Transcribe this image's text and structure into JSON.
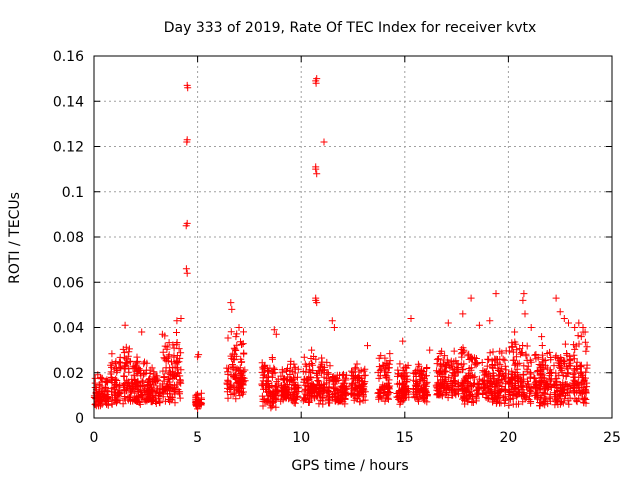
{
  "chart_data": {
    "type": "scatter",
    "title": "Day 333 of 2019, Rate Of TEC Index for receiver kvtx",
    "xlabel": "GPS time / hours",
    "ylabel": "ROTI / TECUs",
    "xlim": [
      0,
      25
    ],
    "ylim": [
      0,
      0.16
    ],
    "xticks": [
      0,
      5,
      10,
      15,
      20,
      25
    ],
    "xtick_labels": [
      "0",
      "5",
      "10",
      "15",
      "20",
      "25"
    ],
    "yticks": [
      0,
      0.02,
      0.04,
      0.06,
      0.08,
      0.1,
      0.12,
      0.14,
      0.16
    ],
    "ytick_labels": [
      "0",
      "0.02",
      "0.04",
      "0.06",
      "0.08",
      "0.1",
      "0.12",
      "0.14",
      "0.16"
    ],
    "grid": true,
    "marker": "+",
    "series_color": "#ff0000",
    "series": [
      {
        "name": "ROTI",
        "clusters": [
          {
            "x": [
              0.0,
              0.7
            ],
            "y": [
              0.005,
              0.02
            ]
          },
          {
            "x": [
              0.8,
              1.3
            ],
            "y": [
              0.005,
              0.03
            ]
          },
          {
            "x": [
              1.4,
              2.0
            ],
            "y": [
              0.005,
              0.035
            ]
          },
          {
            "x": [
              2.0,
              2.5
            ],
            "y": [
              0.005,
              0.028
            ]
          },
          {
            "x": [
              2.5,
              3.2
            ],
            "y": [
              0.006,
              0.025
            ]
          },
          {
            "x": [
              3.3,
              4.2
            ],
            "y": [
              0.006,
              0.04
            ]
          },
          {
            "x": [
              4.9,
              5.2
            ],
            "y": [
              0.005,
              0.012
            ]
          },
          {
            "x": [
              6.4,
              7.3
            ],
            "y": [
              0.008,
              0.04
            ]
          },
          {
            "x": [
              8.1,
              8.9
            ],
            "y": [
              0.004,
              0.03
            ]
          },
          {
            "x": [
              9.0,
              9.9
            ],
            "y": [
              0.006,
              0.025
            ]
          },
          {
            "x": [
              10.1,
              11.4
            ],
            "y": [
              0.006,
              0.028
            ]
          },
          {
            "x": [
              11.5,
              12.2
            ],
            "y": [
              0.006,
              0.022
            ]
          },
          {
            "x": [
              12.4,
              13.1
            ],
            "y": [
              0.007,
              0.026
            ]
          },
          {
            "x": [
              13.7,
              14.3
            ],
            "y": [
              0.007,
              0.03
            ]
          },
          {
            "x": [
              14.6,
              15.2
            ],
            "y": [
              0.006,
              0.026
            ]
          },
          {
            "x": [
              15.4,
              16.1
            ],
            "y": [
              0.007,
              0.025
            ]
          },
          {
            "x": [
              16.5,
              17.6
            ],
            "y": [
              0.008,
              0.03
            ]
          },
          {
            "x": [
              17.7,
              18.6
            ],
            "y": [
              0.006,
              0.035
            ]
          },
          {
            "x": [
              18.7,
              19.9
            ],
            "y": [
              0.006,
              0.033
            ]
          },
          {
            "x": [
              20.0,
              21.1
            ],
            "y": [
              0.005,
              0.035
            ]
          },
          {
            "x": [
              21.2,
              22.1
            ],
            "y": [
              0.005,
              0.033
            ]
          },
          {
            "x": [
              22.2,
              23.0
            ],
            "y": [
              0.005,
              0.035
            ]
          },
          {
            "x": [
              23.1,
              23.8
            ],
            "y": [
              0.005,
              0.04
            ]
          }
        ],
        "points": [
          [
            4.5,
            0.147
          ],
          [
            4.52,
            0.146
          ],
          [
            4.48,
            0.122
          ],
          [
            4.5,
            0.123
          ],
          [
            4.45,
            0.085
          ],
          [
            4.5,
            0.086
          ],
          [
            4.46,
            0.066
          ],
          [
            4.5,
            0.064
          ],
          [
            4.2,
            0.044
          ],
          [
            4.0,
            0.043
          ],
          [
            1.5,
            0.041
          ],
          [
            2.3,
            0.038
          ],
          [
            5.0,
            0.027
          ],
          [
            5.05,
            0.028
          ],
          [
            5.0,
            0.004
          ],
          [
            6.6,
            0.051
          ],
          [
            6.65,
            0.048
          ],
          [
            7.0,
            0.04
          ],
          [
            8.7,
            0.039
          ],
          [
            8.8,
            0.037
          ],
          [
            10.7,
            0.149
          ],
          [
            10.75,
            0.15
          ],
          [
            10.72,
            0.148
          ],
          [
            10.7,
            0.11
          ],
          [
            10.75,
            0.108
          ],
          [
            10.7,
            0.111
          ],
          [
            11.1,
            0.122
          ],
          [
            10.7,
            0.053
          ],
          [
            10.75,
            0.051
          ],
          [
            10.7,
            0.052
          ],
          [
            11.5,
            0.043
          ],
          [
            11.6,
            0.04
          ],
          [
            10.5,
            0.03
          ],
          [
            9.5,
            0.025
          ],
          [
            13.2,
            0.032
          ],
          [
            14.9,
            0.034
          ],
          [
            15.3,
            0.044
          ],
          [
            16.2,
            0.03
          ],
          [
            17.1,
            0.042
          ],
          [
            17.8,
            0.046
          ],
          [
            18.2,
            0.053
          ],
          [
            18.6,
            0.041
          ],
          [
            19.1,
            0.043
          ],
          [
            19.4,
            0.055
          ],
          [
            20.3,
            0.038
          ],
          [
            20.7,
            0.052
          ],
          [
            20.75,
            0.055
          ],
          [
            20.8,
            0.046
          ],
          [
            21.1,
            0.04
          ],
          [
            21.6,
            0.036
          ],
          [
            22.3,
            0.053
          ],
          [
            22.5,
            0.047
          ],
          [
            22.7,
            0.044
          ],
          [
            22.9,
            0.042
          ],
          [
            23.2,
            0.04
          ],
          [
            23.4,
            0.042
          ],
          [
            23.6,
            0.04
          ],
          [
            23.7,
            0.038
          ]
        ]
      }
    ]
  }
}
